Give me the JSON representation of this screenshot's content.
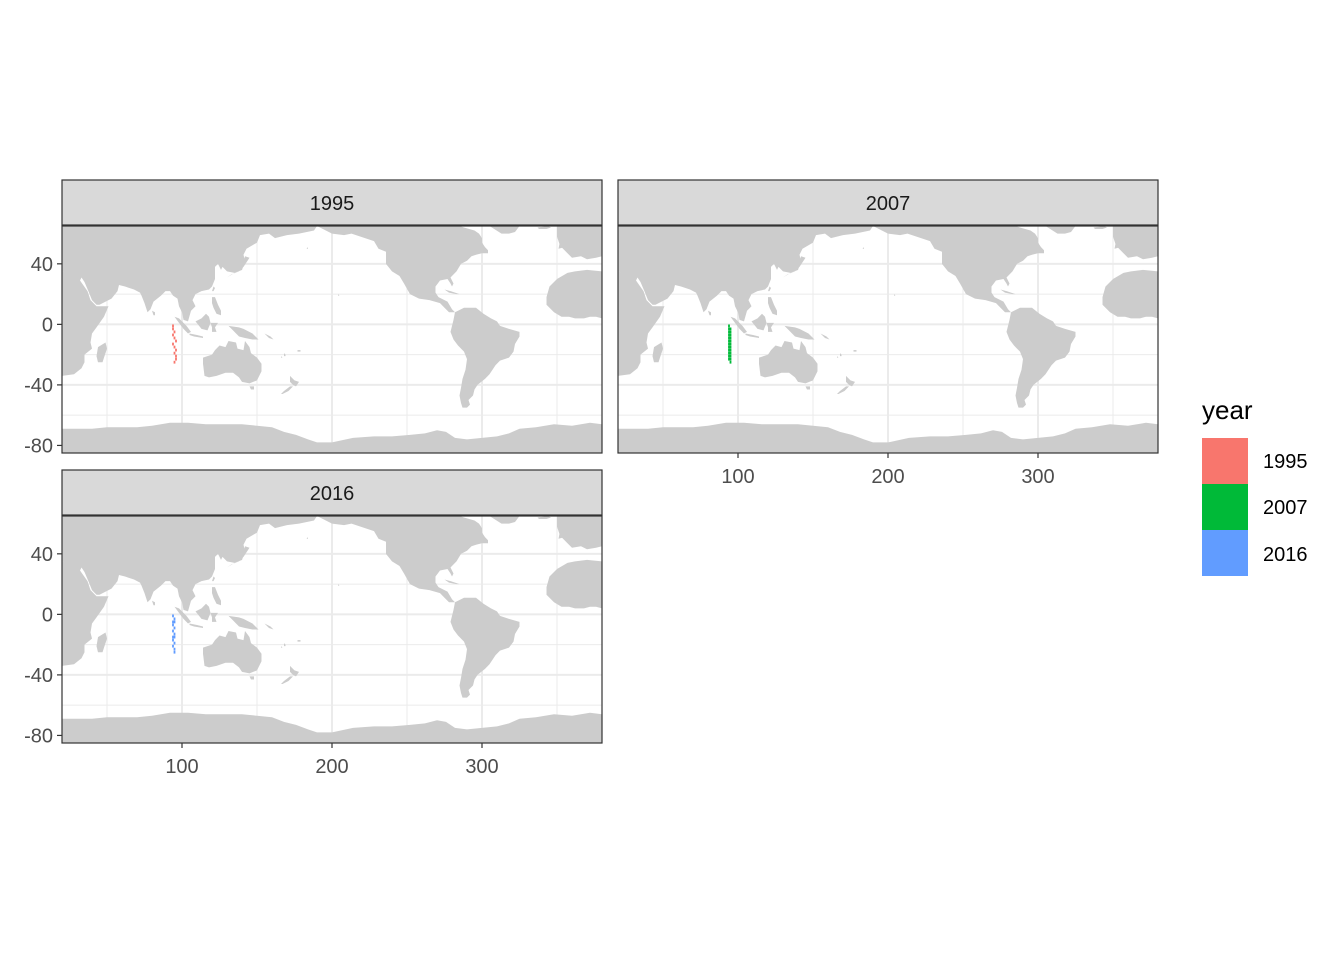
{
  "legend": {
    "title": "year",
    "items": [
      {
        "label": "1995",
        "color": "#F8766D"
      },
      {
        "label": "2007",
        "color": "#00BA38"
      },
      {
        "label": "2016",
        "color": "#619CFF"
      }
    ]
  },
  "colors": {
    "land": "#cccccc",
    "grid": "#ebebeb",
    "strip_fill": "#d9d9d9",
    "panel_border": "#333333"
  },
  "chart_data": {
    "type": "map-facets",
    "facet_variable": "year",
    "xlim": [
      20,
      380
    ],
    "ylim": [
      -85,
      65
    ],
    "x_ticks": [
      100,
      200,
      300
    ],
    "y_ticks": [
      40,
      0,
      -40,
      -80
    ],
    "x_tick_labels": [
      "100",
      "200",
      "300"
    ],
    "y_tick_labels": [
      "40",
      "0",
      "-40",
      "-80"
    ],
    "panels": [
      {
        "strip": "1995",
        "color": "#F8766D",
        "points": [
          [
            94,
            -1
          ],
          [
            94,
            -3
          ],
          [
            95,
            -5
          ],
          [
            94,
            -7
          ],
          [
            95,
            -9
          ],
          [
            96,
            -11
          ],
          [
            94,
            -13
          ],
          [
            95,
            -15
          ],
          [
            96,
            -17
          ],
          [
            95,
            -19
          ],
          [
            96,
            -21
          ],
          [
            96,
            -23
          ],
          [
            95,
            -25
          ]
        ]
      },
      {
        "strip": "2007",
        "color": "#00BA38",
        "points": [
          [
            94,
            -1
          ],
          [
            94,
            -3
          ],
          [
            95,
            -3
          ],
          [
            94,
            -5
          ],
          [
            95,
            -5
          ],
          [
            94,
            -7
          ],
          [
            95,
            -7
          ],
          [
            94,
            -9
          ],
          [
            95,
            -9
          ],
          [
            94,
            -11
          ],
          [
            95,
            -11
          ],
          [
            94,
            -13
          ],
          [
            95,
            -13
          ],
          [
            94,
            -15
          ],
          [
            95,
            -15
          ],
          [
            94,
            -17
          ],
          [
            95,
            -17
          ],
          [
            94,
            -19
          ],
          [
            95,
            -19
          ],
          [
            94,
            -21
          ],
          [
            95,
            -21
          ],
          [
            94,
            -23
          ],
          [
            95,
            -23
          ],
          [
            95,
            -25
          ]
        ]
      },
      {
        "strip": "2016",
        "color": "#619CFF",
        "points": [
          [
            94,
            -1
          ],
          [
            95,
            -3
          ],
          [
            94,
            -5
          ],
          [
            95,
            -5
          ],
          [
            94,
            -7
          ],
          [
            95,
            -9
          ],
          [
            94,
            -11
          ],
          [
            95,
            -13
          ],
          [
            94,
            -15
          ],
          [
            95,
            -15
          ],
          [
            94,
            -17
          ],
          [
            95,
            -19
          ],
          [
            94,
            -21
          ],
          [
            95,
            -23
          ],
          [
            95,
            -25
          ]
        ]
      }
    ]
  }
}
